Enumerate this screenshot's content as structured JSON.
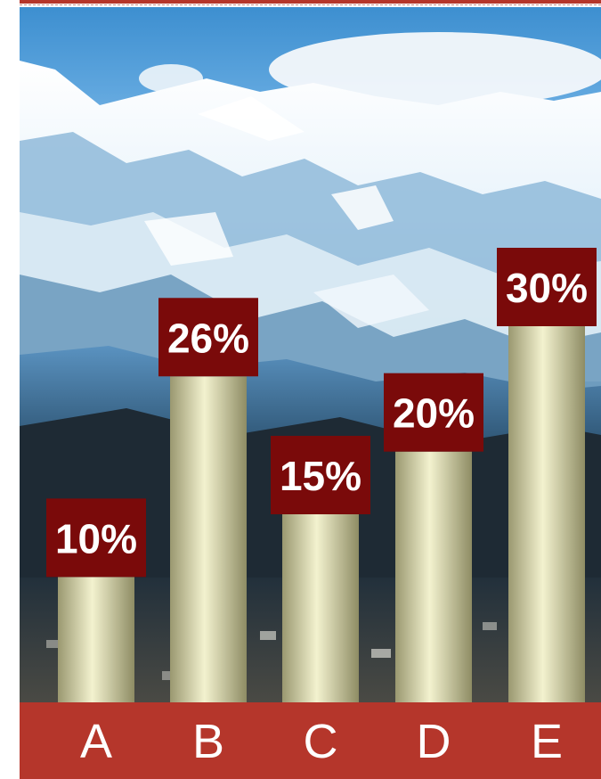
{
  "chart_data": {
    "type": "bar",
    "categories": [
      "A",
      "B",
      "C",
      "D",
      "E"
    ],
    "values": [
      10,
      26,
      15,
      20,
      30
    ],
    "value_labels": [
      "10%",
      "26%",
      "15%",
      "20%",
      "30%"
    ],
    "title": "",
    "xlabel": "",
    "ylabel": "",
    "ylim": [
      0,
      30
    ],
    "grid": false,
    "legend": "none"
  },
  "colors": {
    "label_box": "#7a0a0a",
    "axis_band": "#b5362b",
    "bar_light": "#f3f2cf",
    "bar_dark": "#9a9870"
  }
}
